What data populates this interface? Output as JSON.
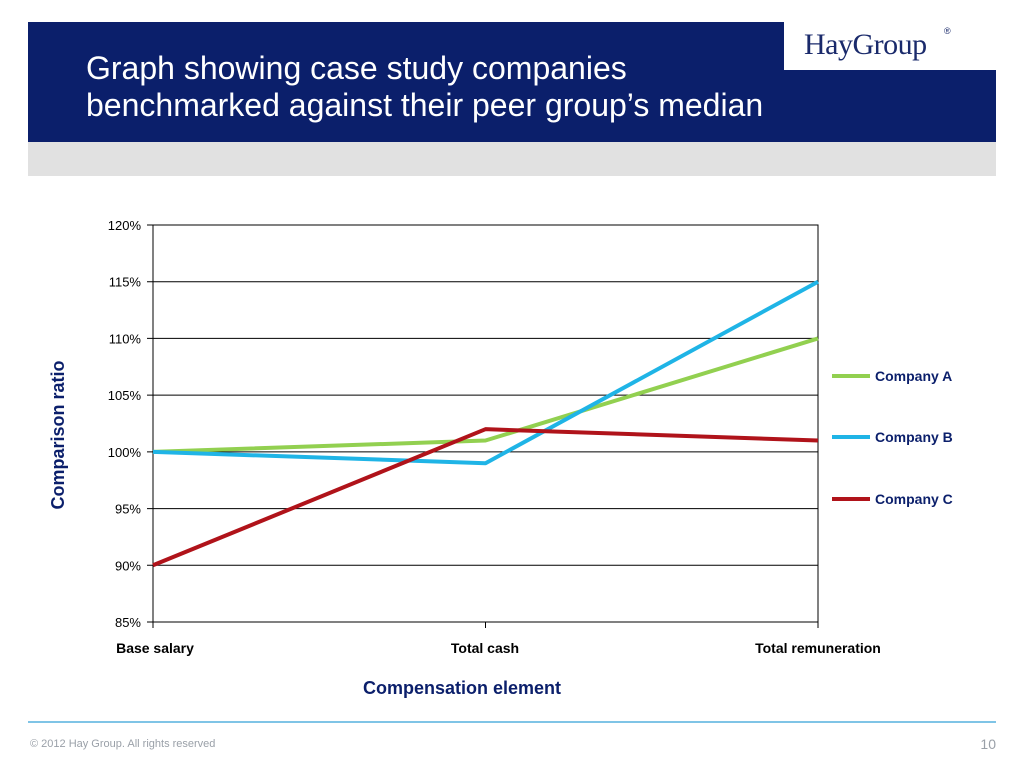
{
  "header": {
    "title_lines": [
      "Graph showing case study companies",
      "benchmarked against their peer group’s median"
    ],
    "logo_text": "HayGroup",
    "logo_mark": "®",
    "band_color": "#0b1f6b"
  },
  "chart_data": {
    "type": "line",
    "categories": [
      "Base salary",
      "Total cash",
      "Total remuneration"
    ],
    "series": [
      {
        "name": "Company A",
        "color": "#92d050",
        "values": [
          100,
          101,
          110
        ]
      },
      {
        "name": "Company B",
        "color": "#1fb4e6",
        "values": [
          100,
          99,
          115
        ]
      },
      {
        "name": "Company C",
        "color": "#b0131a",
        "values": [
          90,
          102,
          101
        ]
      }
    ],
    "ylim": [
      85,
      120
    ],
    "yticks": [
      85,
      90,
      95,
      100,
      105,
      110,
      115,
      120
    ],
    "ytick_labels": [
      "85%",
      "90%",
      "95%",
      "100%",
      "105%",
      "110%",
      "115%",
      "120%"
    ],
    "xlabel": "Compensation element",
    "ylabel": "Comparison ratio",
    "grid": true,
    "legend_position": "right"
  },
  "footer": {
    "copyright": "© 2012 Hay Group. All rights reserved",
    "page_number": "10"
  }
}
